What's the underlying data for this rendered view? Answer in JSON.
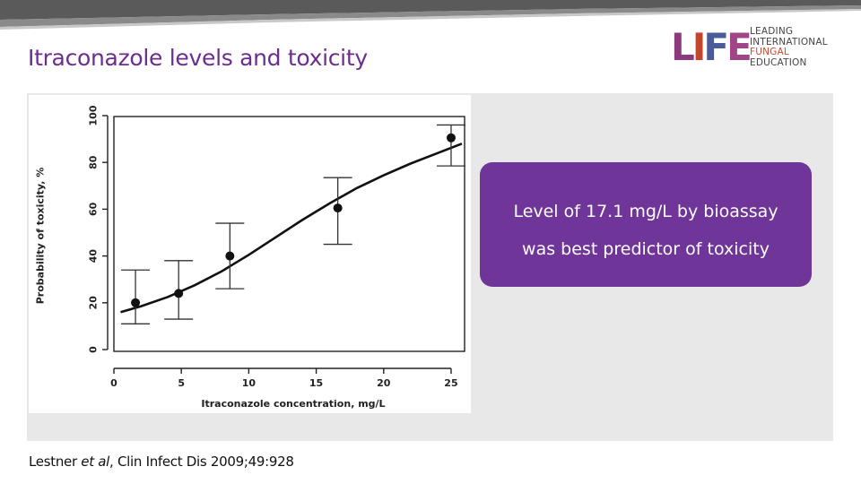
{
  "slide": {
    "title": "Itraconazole levels and toxicity",
    "callout": {
      "line1": "Level of 17.1 mg/L by bioassay",
      "line2": "was best predictor of toxicity"
    },
    "citation": {
      "authors": "Lestner ",
      "etal": "et al",
      "rest": ", Clin Infect Dis 2009;49:928"
    },
    "colors": {
      "title": "#6b2d8f",
      "callout_bg": "#6f3598",
      "panel": "#e8e8e8"
    }
  },
  "logo": {
    "mark": "LIFE",
    "mark_colors": [
      "#8b3a7e",
      "#c2452d",
      "#4a5a9a",
      "#a0458a"
    ],
    "lines": [
      "LEADING",
      "INTERNATIONAL",
      "FUNGAL",
      "EDUCATION"
    ],
    "accent_line_index": 2,
    "accent_color": "#d9472b"
  },
  "chart_data": {
    "type": "scatter",
    "xlabel": "Itraconazole concentration, mg/L",
    "ylabel": "Probability of toxicity, %",
    "xlim": [
      0,
      26
    ],
    "ylim": [
      0,
      100
    ],
    "xticks": [
      0,
      5,
      10,
      15,
      20,
      25
    ],
    "yticks": [
      0,
      20,
      40,
      60,
      80,
      100
    ],
    "grid": false,
    "points": [
      {
        "x": 1.6,
        "y": 20,
        "ylow": 11,
        "yhigh": 34
      },
      {
        "x": 4.8,
        "y": 24,
        "ylow": 13,
        "yhigh": 38
      },
      {
        "x": 8.6,
        "y": 40,
        "ylow": 26,
        "yhigh": 54
      },
      {
        "x": 16.6,
        "y": 60.5,
        "ylow": 45,
        "yhigh": 73.5
      },
      {
        "x": 25.0,
        "y": 90.5,
        "ylow": 78.5,
        "yhigh": 96
      }
    ],
    "curve": {
      "x": [
        0.5,
        2,
        4,
        6,
        8,
        10,
        12,
        14,
        16,
        18,
        20,
        22,
        24,
        25.8
      ],
      "y": [
        16,
        18.5,
        22.5,
        27.5,
        33.5,
        40.5,
        48,
        55.5,
        62.5,
        69,
        74.5,
        79.5,
        84,
        88
      ]
    }
  }
}
